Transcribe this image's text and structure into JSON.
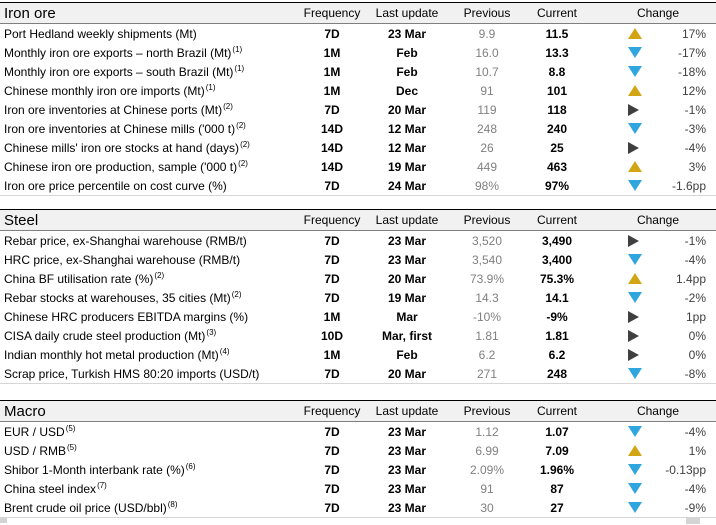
{
  "colors": {
    "up_arrow": "#d2a514",
    "down_arrow": "#2fa6dd",
    "flat_arrow": "#3f3f3f",
    "previous_text": "#808080",
    "header_background": "#f1f1f1"
  },
  "table": {
    "columns": {
      "frequency": "Frequency",
      "last_update": "Last update",
      "previous": "Previous",
      "current": "Current",
      "change": "Change"
    },
    "sections": [
      {
        "title": "Iron ore",
        "rows": [
          {
            "label": "Port Hedland weekly shipments (Mt)",
            "sup": "",
            "frequency": "7D",
            "last_update": "23 Mar",
            "previous": "9.9",
            "current": "11.5",
            "direction": "up",
            "change": "17%"
          },
          {
            "label": "Monthly iron ore exports – north Brazil (Mt)",
            "sup": "(1)",
            "frequency": "1M",
            "last_update": "Feb",
            "previous": "16.0",
            "current": "13.3",
            "direction": "down",
            "change": "-17%"
          },
          {
            "label": "Monthly iron ore exports – south Brazil (Mt)",
            "sup": "(1)",
            "frequency": "1M",
            "last_update": "Feb",
            "previous": "10.7",
            "current": "8.8",
            "direction": "down",
            "change": "-18%"
          },
          {
            "label": "Chinese monthly iron ore imports (Mt)",
            "sup": "(1)",
            "frequency": "1M",
            "last_update": "Dec",
            "previous": "91",
            "current": "101",
            "direction": "up",
            "change": "12%"
          },
          {
            "label": "Iron ore inventories at Chinese ports (Mt)",
            "sup": "(2)",
            "frequency": "7D",
            "last_update": "20 Mar",
            "previous": "119",
            "current": "118",
            "direction": "flat",
            "change": "-1%"
          },
          {
            "label": "Iron ore inventories at Chinese mills ('000 t)",
            "sup": "(2)",
            "frequency": "14D",
            "last_update": "12 Mar",
            "previous": "248",
            "current": "240",
            "direction": "down",
            "change": "-3%"
          },
          {
            "label": "Chinese mills' iron ore stocks at hand (days)",
            "sup": "(2)",
            "frequency": "14D",
            "last_update": "12 Mar",
            "previous": "26",
            "current": "25",
            "direction": "flat",
            "change": "-4%"
          },
          {
            "label": "Chinese iron ore production, sample ('000 t)",
            "sup": "(2)",
            "frequency": "14D",
            "last_update": "19 Mar",
            "previous": "449",
            "current": "463",
            "direction": "up",
            "change": "3%"
          },
          {
            "label": "Iron ore price percentile on cost curve (%)",
            "sup": "",
            "frequency": "7D",
            "last_update": "24 Mar",
            "previous": "98%",
            "current": "97%",
            "direction": "down",
            "change": "-1.6pp"
          }
        ]
      },
      {
        "title": "Steel",
        "rows": [
          {
            "label": "Rebar price, ex-Shanghai warehouse (RMB/t)",
            "sup": "",
            "frequency": "7D",
            "last_update": "23 Mar",
            "previous": "3,520",
            "current": "3,490",
            "direction": "flat",
            "change": "-1%"
          },
          {
            "label": "HRC price, ex-Shanghai warehouse (RMB/t)",
            "sup": "",
            "frequency": "7D",
            "last_update": "23 Mar",
            "previous": "3,540",
            "current": "3,400",
            "direction": "down",
            "change": "-4%"
          },
          {
            "label": "China BF utilisation rate (%)",
            "sup": "(2)",
            "frequency": "7D",
            "last_update": "20 Mar",
            "previous": "73.9%",
            "current": "75.3%",
            "direction": "up",
            "change": "1.4pp"
          },
          {
            "label": "Rebar stocks at warehouses, 35 cities (Mt)",
            "sup": "(2)",
            "frequency": "7D",
            "last_update": "19 Mar",
            "previous": "14.3",
            "current": "14.1",
            "direction": "down",
            "change": "-2%"
          },
          {
            "label": "Chinese HRC producers EBITDA margins (%)",
            "sup": "",
            "frequency": "1M",
            "last_update": "Mar",
            "previous": "-10%",
            "current": "-9%",
            "direction": "flat",
            "change": "1pp"
          },
          {
            "label": "CISA daily crude steel production (Mt)",
            "sup": "(3)",
            "frequency": "10D",
            "last_update": "Mar, first",
            "previous": "1.81",
            "current": "1.81",
            "direction": "flat",
            "change": "0%"
          },
          {
            "label": "Indian monthly hot metal production (Mt)",
            "sup": "(4)",
            "frequency": "1M",
            "last_update": "Feb",
            "previous": "6.2",
            "current": "6.2",
            "direction": "flat",
            "change": "0%"
          },
          {
            "label": "Scrap price, Turkish HMS 80:20 imports (USD/t)",
            "sup": "",
            "frequency": "7D",
            "last_update": "20 Mar",
            "previous": "271",
            "current": "248",
            "direction": "down",
            "change": "-8%"
          }
        ]
      },
      {
        "title": "Macro",
        "rows": [
          {
            "label": "EUR / USD",
            "sup": "(5)",
            "frequency": "7D",
            "last_update": "23 Mar",
            "previous": "1.12",
            "current": "1.07",
            "direction": "down",
            "change": "-4%"
          },
          {
            "label": "USD / RMB",
            "sup": "(5)",
            "frequency": "7D",
            "last_update": "23 Mar",
            "previous": "6.99",
            "current": "7.09",
            "direction": "up",
            "change": "1%"
          },
          {
            "label": "Shibor 1-Month interbank rate (%)",
            "sup": "(6)",
            "frequency": "7D",
            "last_update": "23 Mar",
            "previous": "2.09%",
            "current": "1.96%",
            "direction": "down",
            "change": "-0.13pp"
          },
          {
            "label": "China steel index",
            "sup": "(7)",
            "frequency": "7D",
            "last_update": "23 Mar",
            "previous": "91",
            "current": "87",
            "direction": "down",
            "change": "-4%"
          },
          {
            "label": "Brent crude oil price (USD/bbl)",
            "sup": "(8)",
            "frequency": "7D",
            "last_update": "23 Mar",
            "previous": "30",
            "current": "27",
            "direction": "down",
            "change": "-9%"
          }
        ]
      }
    ]
  }
}
